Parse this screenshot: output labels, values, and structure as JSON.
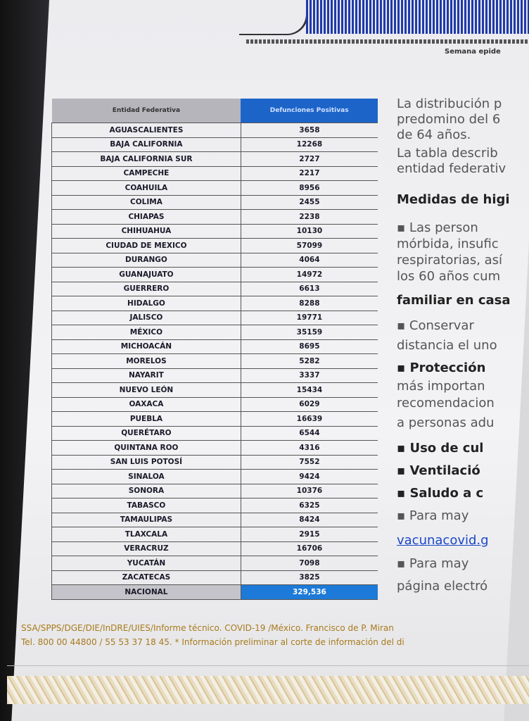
{
  "header": {
    "axis_label": "Semana epide"
  },
  "table": {
    "headers": [
      "Entidad Federativa",
      "Defunciones Positivas"
    ],
    "rows": [
      [
        "AGUASCALIENTES",
        "3658"
      ],
      [
        "BAJA CALIFORNIA",
        "12268"
      ],
      [
        "BAJA CALIFORNIA SUR",
        "2727"
      ],
      [
        "CAMPECHE",
        "2217"
      ],
      [
        "COAHUILA",
        "8956"
      ],
      [
        "COLIMA",
        "2455"
      ],
      [
        "CHIAPAS",
        "2238"
      ],
      [
        "CHIHUAHUA",
        "10130"
      ],
      [
        "CIUDAD DE MEXICO",
        "57099"
      ],
      [
        "DURANGO",
        "4064"
      ],
      [
        "GUANAJUATO",
        "14972"
      ],
      [
        "GUERRERO",
        "6613"
      ],
      [
        "HIDALGO",
        "8288"
      ],
      [
        "JALISCO",
        "19771"
      ],
      [
        "MÉXICO",
        "35159"
      ],
      [
        "MICHOACÁN",
        "8695"
      ],
      [
        "MORELOS",
        "5282"
      ],
      [
        "NAYARIT",
        "3337"
      ],
      [
        "NUEVO LEÓN",
        "15434"
      ],
      [
        "OAXACA",
        "6029"
      ],
      [
        "PUEBLA",
        "16639"
      ],
      [
        "QUERÉTARO",
        "6544"
      ],
      [
        "QUINTANA ROO",
        "4316"
      ],
      [
        "SAN LUIS POTOSÍ",
        "7552"
      ],
      [
        "SINALOA",
        "9424"
      ],
      [
        "SONORA",
        "10376"
      ],
      [
        "TABASCO",
        "6325"
      ],
      [
        "TAMAULIPAS",
        "8424"
      ],
      [
        "TLAXCALA",
        "2915"
      ],
      [
        "VERACRUZ",
        "16706"
      ],
      [
        "YUCATÁN",
        "7098"
      ],
      [
        "ZACATECAS",
        "3825"
      ]
    ],
    "total_label": "NACIONAL",
    "total_value": "329,536"
  },
  "text": {
    "lines": [
      "La distribución p",
      "predomino del 6",
      "de 64 años.",
      "La tabla describ",
      "entidad federativ",
      "Medidas de higi",
      "▪   Las  person",
      "mórbida, insufic",
      "respiratorias, así",
      "los 60 años cum",
      "familiar en casa",
      "▪     Conservar",
      "distancia el uno",
      "▪     Protección",
      "más  importan",
      "recomendacion",
      "a personas adu",
      "▪     Uso de cul",
      "▪     Ventilació",
      "▪     Saludo a c",
      "▪     Para  may",
      "vacunacovid.g",
      "▪     Para  may",
      "página electró"
    ]
  },
  "footer": {
    "line1": "SSA/SPPS/DGE/DIE/InDRE/UIES/Informe técnico. COVID-19 /México. Francisco de P. Miran",
    "line2": "Tel. 800 00 44800 / 55 53 37 18 45. * Información preliminar al corte de información del di"
  },
  "colors": {
    "header_blue": "#1d64c9",
    "footer_gold": "#a87a1c",
    "link": "#1a47c8"
  }
}
